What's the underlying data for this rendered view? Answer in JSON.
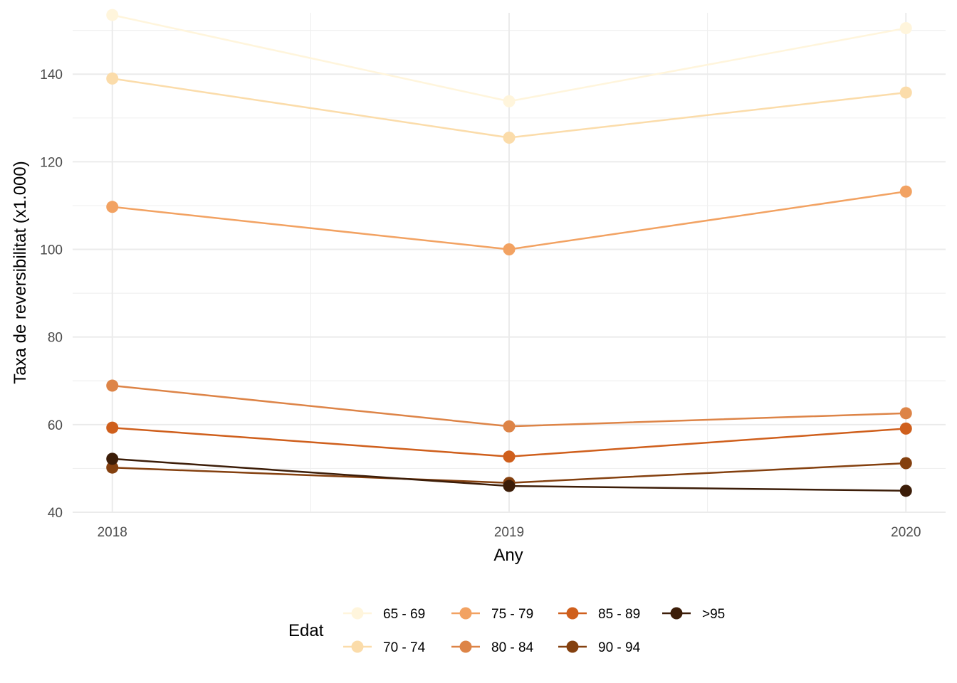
{
  "chart_data": {
    "type": "line",
    "title": "",
    "xlabel": "Any",
    "ylabel": "Taxa de reversibilitat (x1.000)",
    "x": [
      2018,
      2019,
      2020
    ],
    "x_tick_labels": [
      "2018",
      "2019",
      "2020"
    ],
    "y_ticks": [
      40,
      60,
      80,
      100,
      120,
      140
    ],
    "y_tick_labels": [
      "40",
      "60",
      "80",
      "100",
      "120",
      "140"
    ],
    "xlim": [
      2017.9,
      2020.1
    ],
    "ylim": [
      40,
      154
    ],
    "grid": true,
    "legend_title": "Edat",
    "legend_position": "bottom",
    "series": [
      {
        "name": "65 - 69",
        "color": "#FFF5DC",
        "values": [
          153.5,
          133.8,
          150.5
        ]
      },
      {
        "name": "70 - 74",
        "color": "#FBDCAA",
        "values": [
          139.0,
          125.5,
          135.8
        ]
      },
      {
        "name": "75 - 79",
        "color": "#F2A262",
        "values": [
          109.7,
          100.0,
          113.2
        ]
      },
      {
        "name": "80 - 84",
        "color": "#DD8447",
        "values": [
          68.9,
          59.6,
          62.6
        ]
      },
      {
        "name": "85 - 89",
        "color": "#CF5F1C",
        "values": [
          59.3,
          52.7,
          59.1
        ]
      },
      {
        "name": "90 - 94",
        "color": "#84400F",
        "values": [
          50.2,
          46.7,
          51.2
        ]
      },
      {
        "name": ">95",
        "color": "#3C1D08",
        "values": [
          52.2,
          46.0,
          44.9
        ]
      }
    ]
  }
}
